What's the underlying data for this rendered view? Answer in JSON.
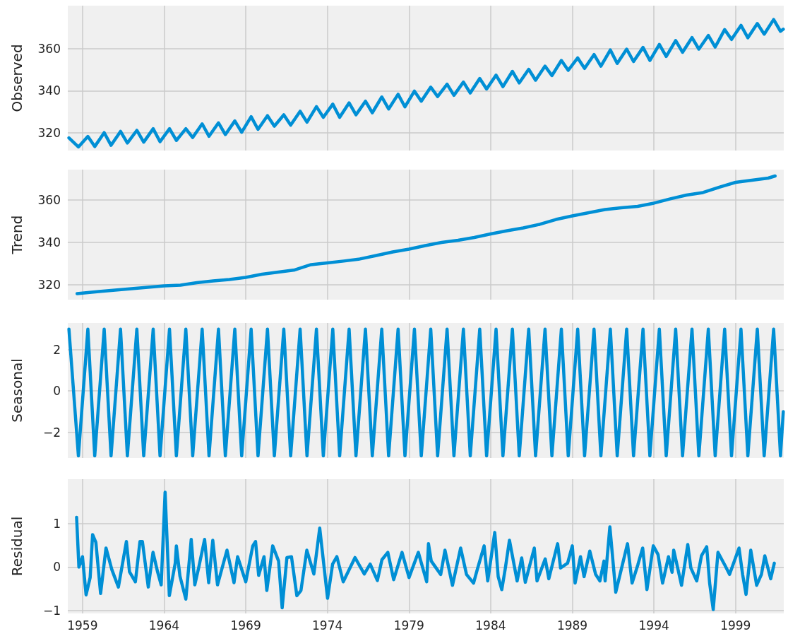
{
  "chart_data": [
    {
      "type": "line",
      "ylabel": "Observed",
      "color": "#008fd5",
      "grid": true,
      "tick_labels": "y",
      "xlim": [
        1958.1,
        2001.95
      ],
      "xticks": [
        1959,
        1964,
        1969,
        1974,
        1979,
        1984,
        1989,
        1994,
        1999
      ],
      "ylim": [
        311.5,
        380.5
      ],
      "yticks": [
        320,
        340,
        360
      ],
      "x": [
        1958.17,
        1958.75,
        1959.33,
        1959.75,
        1960.33,
        1960.75,
        1961.33,
        1961.75,
        1962.33,
        1962.75,
        1963.33,
        1963.75,
        1964.33,
        1964.75,
        1965.33,
        1965.75,
        1966.33,
        1966.75,
        1967.33,
        1967.75,
        1968.33,
        1968.75,
        1969.33,
        1969.75,
        1970.33,
        1970.75,
        1971.33,
        1971.75,
        1972.33,
        1972.75,
        1973.33,
        1973.75,
        1974.33,
        1974.75,
        1975.33,
        1975.75,
        1976.33,
        1976.75,
        1977.33,
        1977.75,
        1978.33,
        1978.75,
        1979.33,
        1979.75,
        1980.33,
        1980.75,
        1981.33,
        1981.75,
        1982.33,
        1982.75,
        1983.33,
        1983.75,
        1984.33,
        1984.75,
        1985.33,
        1985.75,
        1986.33,
        1986.75,
        1987.33,
        1987.75,
        1988.33,
        1988.75,
        1989.33,
        1989.75,
        1990.33,
        1990.75,
        1991.33,
        1991.75,
        1992.33,
        1992.75,
        1993.33,
        1993.75,
        1994.33,
        1994.75,
        1995.33,
        1995.75,
        1996.33,
        1996.75,
        1997.33,
        1997.75,
        1998.33,
        1998.75,
        1999.33,
        1999.75,
        2000.33,
        2000.75,
        2001.33,
        2001.75,
        2001.92
      ],
      "values": [
        317.5,
        313.2,
        318.2,
        313.4,
        320,
        314,
        320.6,
        315.1,
        321.1,
        315.5,
        321.9,
        315.7,
        321.9,
        316.3,
        321.9,
        317.7,
        324.2,
        318.3,
        324.7,
        319.1,
        325.6,
        320.2,
        327.6,
        321.6,
        328.1,
        323.1,
        328.5,
        323.6,
        330.2,
        325,
        332.4,
        327.3,
        333.6,
        327.3,
        334.2,
        328.5,
        335,
        329.5,
        337,
        331.3,
        338.3,
        332.3,
        339.8,
        335,
        341.7,
        337.2,
        343.1,
        337.8,
        344.1,
        338.9,
        345.8,
        340.8,
        347.4,
        341.9,
        349.2,
        343.7,
        350.2,
        345,
        351.7,
        347.2,
        354.4,
        349.7,
        355.6,
        350.6,
        357.2,
        351.7,
        359.4,
        353,
        359.8,
        353.9,
        360.6,
        354.4,
        362,
        356.3,
        363.9,
        358.3,
        365.3,
        359.8,
        366.3,
        360.8,
        369.1,
        364.4,
        371.1,
        365.2,
        372,
        366.9,
        373.9,
        368.3,
        369.3
      ]
    },
    {
      "type": "line",
      "ylabel": "Trend",
      "color": "#008fd5",
      "grid": true,
      "tick_labels": "y",
      "xlim": [
        1958.1,
        2001.95
      ],
      "xticks": [
        1959,
        1964,
        1969,
        1974,
        1979,
        1984,
        1989,
        1994,
        1999
      ],
      "ylim": [
        313,
        374.3
      ],
      "yticks": [
        320,
        340,
        360
      ],
      "x": [
        1958.67,
        1960,
        1961,
        1962,
        1963,
        1964,
        1965,
        1966,
        1967,
        1968,
        1969,
        1970,
        1971,
        1972,
        1973,
        1974,
        1975,
        1976,
        1977,
        1978,
        1979,
        1980,
        1981,
        1982,
        1983,
        1984,
        1985,
        1986,
        1987,
        1988,
        1989,
        1990,
        1991,
        1992,
        1993,
        1994,
        1995,
        1996,
        1997,
        1998,
        1999,
        2000,
        2001,
        2001.42
      ],
      "values": [
        315.8,
        316.8,
        317.5,
        318.2,
        318.8,
        319.5,
        319.8,
        321,
        321.8,
        322.5,
        323.5,
        325,
        326,
        327,
        329.5,
        330.3,
        331.2,
        332.2,
        333.8,
        335.5,
        336.8,
        338.5,
        340,
        341,
        342.3,
        344,
        345.5,
        346.8,
        348.5,
        350.8,
        352.5,
        354,
        355.5,
        356.3,
        357,
        358.5,
        360.5,
        362.3,
        363.5,
        366,
        368.3,
        369.3,
        370.3,
        371.3
      ]
    },
    {
      "type": "line",
      "ylabel": "Seasonal",
      "color": "#008fd5",
      "grid": true,
      "tick_labels": "y",
      "xlim": [
        1958.1,
        2001.95
      ],
      "xticks": [
        1959,
        1964,
        1969,
        1974,
        1979,
        1984,
        1989,
        1994,
        1999
      ],
      "ylim": [
        -3.25,
        3.3
      ],
      "yticks": [
        {
          "value": -2,
          "label": "−2"
        },
        0,
        2
      ],
      "x": [
        1958.17,
        1958.75,
        1959.33,
        1959.75,
        1960.33,
        1960.75,
        1961.33,
        1961.75,
        1962.33,
        1962.75,
        1963.33,
        1963.75,
        1964.33,
        1964.75,
        1965.33,
        1965.75,
        1966.33,
        1966.75,
        1967.33,
        1967.75,
        1968.33,
        1968.75,
        1969.33,
        1969.75,
        1970.33,
        1970.75,
        1971.33,
        1971.75,
        1972.33,
        1972.75,
        1973.33,
        1973.75,
        1974.33,
        1974.75,
        1975.33,
        1975.75,
        1976.33,
        1976.75,
        1977.33,
        1977.75,
        1978.33,
        1978.75,
        1979.33,
        1979.75,
        1980.33,
        1980.75,
        1981.33,
        1981.75,
        1982.33,
        1982.75,
        1983.33,
        1983.75,
        1984.33,
        1984.75,
        1985.33,
        1985.75,
        1986.33,
        1986.75,
        1987.33,
        1987.75,
        1988.33,
        1988.75,
        1989.33,
        1989.75,
        1990.33,
        1990.75,
        1991.33,
        1991.75,
        1992.33,
        1992.75,
        1993.33,
        1993.75,
        1994.33,
        1994.75,
        1995.33,
        1995.75,
        1996.33,
        1996.75,
        1997.33,
        1997.75,
        1998.33,
        1998.75,
        1999.33,
        1999.75,
        2000.33,
        2000.75,
        2001.33,
        2001.75,
        2001.92
      ],
      "values": [
        3,
        -3.15,
        3,
        -3.15,
        3,
        -3.15,
        3,
        -3.15,
        3,
        -3.15,
        3,
        -3.15,
        3,
        -3.15,
        3,
        -3.15,
        3,
        -3.15,
        3,
        -3.15,
        3,
        -3.15,
        3,
        -3.15,
        3,
        -3.15,
        3,
        -3.15,
        3,
        -3.15,
        3,
        -3.15,
        3,
        -3.15,
        3,
        -3.15,
        3,
        -3.15,
        3,
        -3.15,
        3,
        -3.15,
        3,
        -3.15,
        3,
        -3.15,
        3,
        -3.15,
        3,
        -3.15,
        3,
        -3.15,
        3,
        -3.15,
        3,
        -3.15,
        3,
        -3.15,
        3,
        -3.15,
        3,
        -3.15,
        3,
        -3.15,
        3,
        -3.15,
        3,
        -3.15,
        3,
        -3.15,
        3,
        -3.15,
        3,
        -3.15,
        3,
        -3.15,
        3,
        -3.15,
        3,
        -3.15,
        3,
        -3.15,
        3,
        -3.15,
        3,
        -3.15,
        3,
        -3.15,
        -1
      ]
    },
    {
      "type": "line",
      "ylabel": "Residual",
      "color": "#008fd5",
      "grid": true,
      "xlim": [
        1958.1,
        2001.95
      ],
      "xticks": [
        1959,
        1964,
        1969,
        1974,
        1979,
        1984,
        1989,
        1994,
        1999
      ],
      "ylim": [
        -1.07,
        2.03
      ],
      "yticks": [
        {
          "value": -1,
          "label": "−1"
        },
        0,
        1
      ],
      "x": [
        1958.64,
        1958.78,
        1959.0,
        1959.22,
        1959.47,
        1959.62,
        1959.82,
        1960.11,
        1960.44,
        1960.8,
        1961.2,
        1961.69,
        1961.88,
        1962.24,
        1962.52,
        1962.67,
        1963.03,
        1963.32,
        1963.6,
        1963.82,
        1964.06,
        1964.32,
        1964.68,
        1964.75,
        1964.97,
        1965.33,
        1965.66,
        1965.88,
        1966.12,
        1966.48,
        1966.73,
        1966.98,
        1967.27,
        1967.85,
        1968.28,
        1968.5,
        1969.0,
        1969.43,
        1969.6,
        1969.79,
        1970.12,
        1970.29,
        1970.65,
        1971.01,
        1971.23,
        1971.52,
        1971.8,
        1972.13,
        1972.38,
        1972.74,
        1973.17,
        1973.53,
        1974.01,
        1974.32,
        1974.58,
        1974.97,
        1975.69,
        1976.26,
        1976.62,
        1977.06,
        1977.34,
        1977.7,
        1978.06,
        1978.57,
        1979.0,
        1979.57,
        1980.08,
        1980.19,
        1980.36,
        1980.94,
        1981.2,
        1981.66,
        1982.16,
        1982.52,
        1982.95,
        1983.17,
        1983.6,
        1983.82,
        1984.25,
        1984.46,
        1984.68,
        1984.9,
        1985.15,
        1985.62,
        1985.9,
        1986.12,
        1986.67,
        1986.84,
        1987.34,
        1987.56,
        1988.1,
        1988.28,
        1988.71,
        1989.0,
        1989.17,
        1989.5,
        1989.72,
        1990.07,
        1990.43,
        1990.69,
        1990.94,
        1991.01,
        1991.3,
        1991.66,
        1992.02,
        1992.38,
        1992.66,
        1993.02,
        1993.31,
        1993.57,
        1993.96,
        1994.25,
        1994.53,
        1994.89,
        1995.11,
        1995.21,
        1995.69,
        1996.07,
        1996.26,
        1996.62,
        1996.91,
        1997.23,
        1997.41,
        1997.63,
        1997.92,
        1998.35,
        1998.63,
        1999.21,
        1999.43,
        1999.64,
        1999.93,
        2000.29,
        2000.58,
        2000.79,
        2001.15,
        2001.37
      ],
      "values": [
        1.15,
        0,
        0.24,
        -0.64,
        -0.24,
        0.75,
        0.57,
        -0.61,
        0.44,
        -0.06,
        -0.46,
        0.59,
        -0.11,
        -0.34,
        0.59,
        0.59,
        -0.46,
        0.34,
        -0.11,
        -0.41,
        1.73,
        -0.66,
        0.09,
        0.49,
        -0.21,
        -0.74,
        0.64,
        -0.41,
        -0.01,
        0.64,
        -0.36,
        0.62,
        -0.41,
        0.39,
        -0.36,
        0.24,
        -0.34,
        0.49,
        0.59,
        -0.19,
        0.24,
        -0.54,
        0.49,
        0.14,
        -0.94,
        0.22,
        0.24,
        -0.66,
        -0.54,
        0.39,
        -0.16,
        0.9,
        -0.72,
        0.07,
        0.24,
        -0.34,
        0.22,
        -0.16,
        0.07,
        -0.31,
        0.17,
        0.34,
        -0.29,
        0.34,
        -0.24,
        0.34,
        -0.34,
        0.54,
        0.14,
        -0.17,
        0.39,
        -0.42,
        0.44,
        -0.17,
        -0.37,
        -0.07,
        0.49,
        -0.32,
        0.8,
        -0.22,
        -0.52,
        -0.02,
        0.62,
        -0.32,
        0.21,
        -0.35,
        0.44,
        -0.32,
        0.19,
        -0.27,
        0.54,
        -0.02,
        0.09,
        0.49,
        -0.37,
        0.24,
        -0.22,
        0.37,
        -0.17,
        -0.32,
        0.14,
        -0.32,
        0.93,
        -0.58,
        -0.02,
        0.54,
        -0.37,
        0.06,
        0.44,
        -0.52,
        0.49,
        0.29,
        -0.37,
        0.24,
        -0.12,
        0.39,
        -0.42,
        0.52,
        -0.02,
        -0.32,
        0.26,
        0.47,
        -0.37,
        -0.98,
        0.34,
        0.04,
        -0.17,
        0.44,
        -0.17,
        -0.63,
        0.39,
        -0.42,
        -0.17,
        0.26,
        -0.27,
        0.09
      ]
    }
  ]
}
